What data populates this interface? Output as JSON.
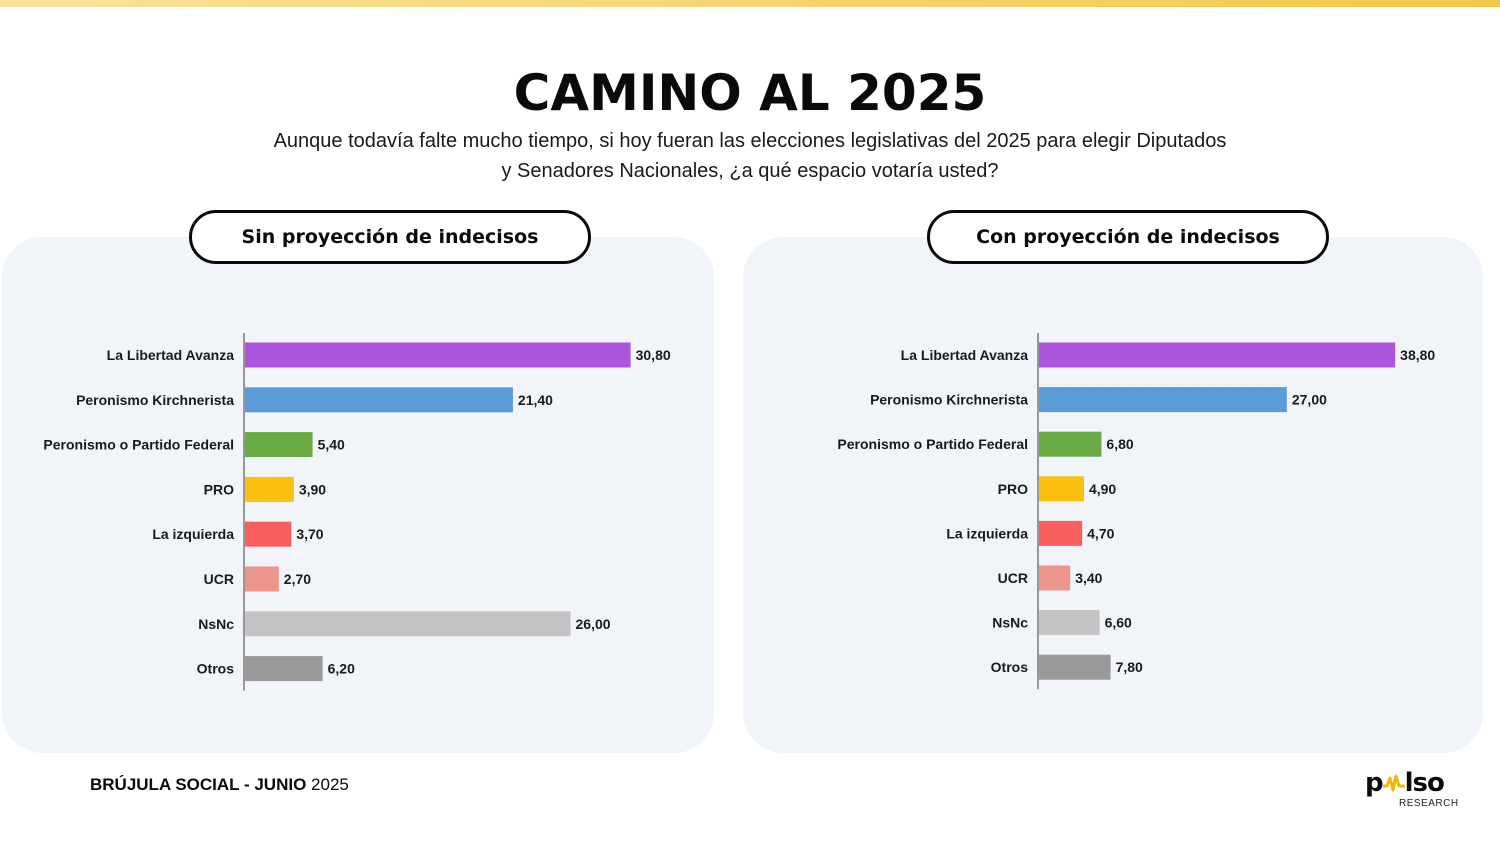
{
  "header": {
    "title": "CAMINO AL 2025",
    "subtitle_line1": "Aunque todavía falte mucho tiempo, si hoy fueran las elecciones legislativas del 2025 para elegir Diputados",
    "subtitle_line2": "y Senadores Nacionales, ¿a qué espacio votaría usted?"
  },
  "panels": {
    "left_title": "Sin proyección de indecisos",
    "right_title": "Con proyección de indecisos"
  },
  "footer": {
    "source_bold": "BRÚJULA SOCIAL - JUNIO",
    "source_year": "2025",
    "logo_text_start": "p",
    "logo_text_end": "lso",
    "logo_sub": "RESEARCH"
  },
  "colors": {
    "stripe": "#f5d36a",
    "panel_bg": "#f1f4f9"
  },
  "chart_data": [
    {
      "type": "bar",
      "orientation": "horizontal",
      "title": "Sin proyección de indecisos",
      "categories": [
        "La Libertad Avanza",
        "Peronismo Kirchnerista",
        "Peronismo o Partido Federal",
        "PRO",
        "La izquierda",
        "UCR",
        "NsNc",
        "Otros"
      ],
      "values": [
        30.8,
        21.4,
        5.4,
        3.9,
        3.7,
        2.7,
        26.0,
        6.2
      ],
      "value_labels": [
        "30,80",
        "21,40",
        "5,40",
        "3,90",
        "3,70",
        "2,70",
        "26,00",
        "6,20"
      ],
      "colors": [
        "#ab55dc",
        "#5a9bd8",
        "#6aab46",
        "#fbc00f",
        "#f95f5f",
        "#ec958a",
        "#c4c4c4",
        "#999999"
      ],
      "grid": false
    },
    {
      "type": "bar",
      "orientation": "horizontal",
      "title": "Con proyección de indecisos",
      "categories": [
        "La Libertad Avanza",
        "Peronismo Kirchnerista",
        "Peronismo o Partido Federal",
        "PRO",
        "La izquierda",
        "UCR",
        "NsNc",
        "Otros"
      ],
      "values": [
        38.8,
        27.0,
        6.8,
        4.9,
        4.7,
        3.4,
        6.6,
        7.8
      ],
      "value_labels": [
        "38,80",
        "27,00",
        "6,80",
        "4,90",
        "4,70",
        "3,40",
        "6,60",
        "7,80"
      ],
      "colors": [
        "#ab55dc",
        "#5a9bd8",
        "#6aab46",
        "#fbc00f",
        "#f95f5f",
        "#ec958a",
        "#c4c4c4",
        "#999999"
      ],
      "grid": false
    }
  ]
}
